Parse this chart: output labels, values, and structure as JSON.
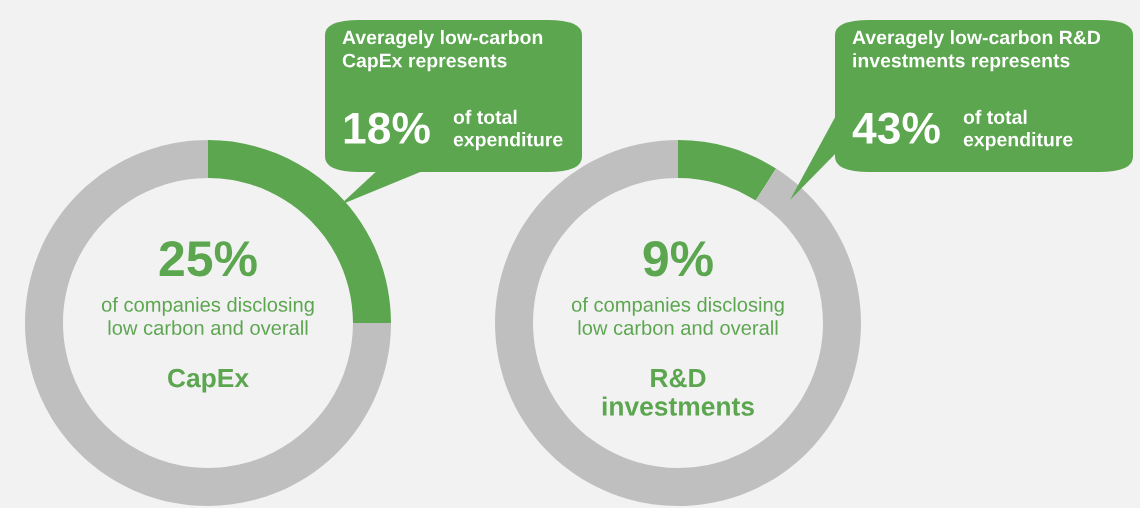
{
  "chart_data": [
    {
      "type": "donut",
      "categories": [
        null,
        null
      ],
      "values": [
        25,
        75
      ],
      "colors": [
        "#5ba64f",
        "#bfbfbf"
      ],
      "value_labels": [
        "25%",
        null
      ],
      "annotations": [
        "of companies disclosing\nlow carbon and overall",
        "CapEx",
        "Averagely low-carbon\nCapEx represents",
        "18%",
        "of total\nexpenditure"
      ]
    },
    {
      "type": "donut",
      "categories": [
        null,
        null
      ],
      "values": [
        9,
        91
      ],
      "colors": [
        "#5ba64f",
        "#bfbfbf"
      ],
      "value_labels": [
        "9%",
        null
      ],
      "annotations": [
        "of companies disclosing\nlow carbon and overall",
        "R&D\ninvestments",
        "Averagely low-carbon R&D\ninvestments represents",
        "43%",
        "of total\nexpenditure"
      ]
    }
  ]
}
